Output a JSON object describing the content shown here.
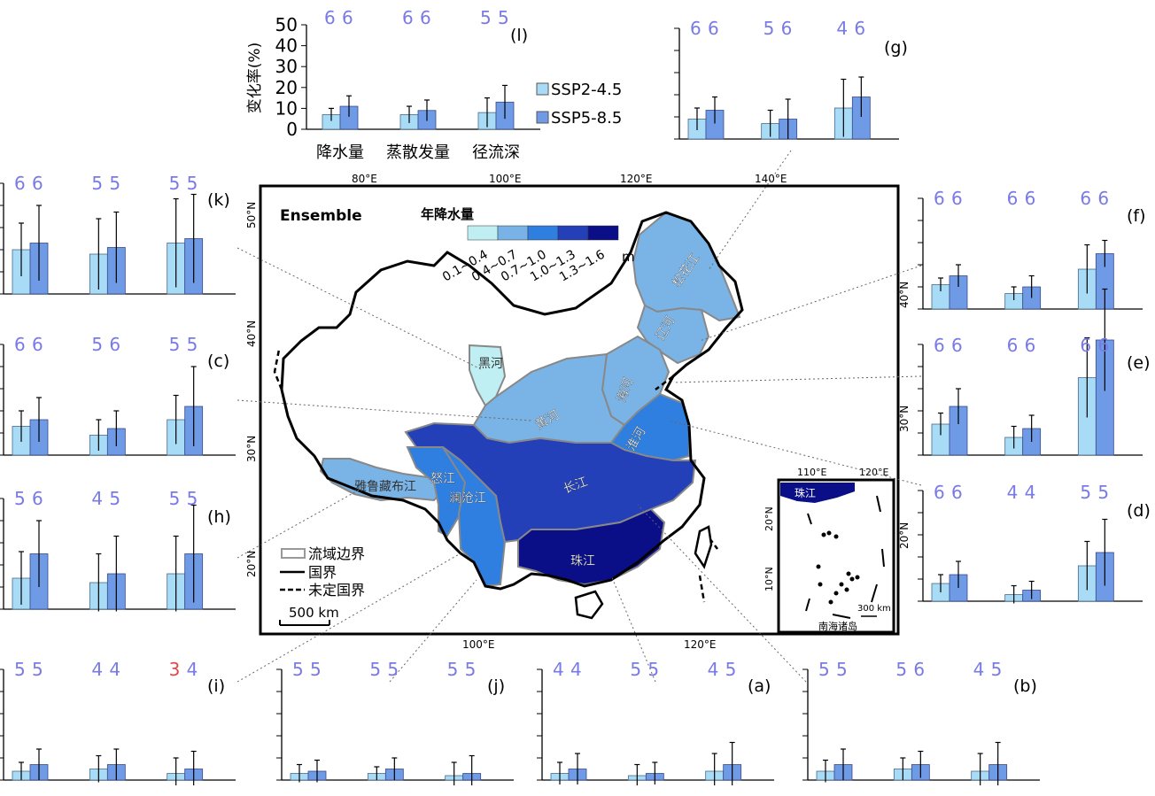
{
  "legend": {
    "ssp245": "SSP2-4.5",
    "ssp585": "SSP5-8.5",
    "ssp245_color": "#a8dcf6",
    "ssp585_color": "#6e9ae6"
  },
  "map": {
    "title": "Ensemble",
    "colorbar_title": "年降水量",
    "colorbar_unit": "m",
    "colorbar_bins": [
      "0.1~0.4",
      "0.4~0.7",
      "0.7~1.0",
      "1.0~1.3",
      "1.3~1.6"
    ],
    "colorbar_colors": [
      "#bfeff3",
      "#78b2e6",
      "#2f7fe0",
      "#2340b8",
      "#0a0f88"
    ],
    "lon_ticks_top": [
      "80°E",
      "100°E",
      "120°E",
      "140°E"
    ],
    "lon_ticks_bottom": [
      "100°E",
      "120°E"
    ],
    "lat_ticks": [
      "50°N",
      "40°N",
      "30°N",
      "20°N"
    ],
    "basins": [
      "松花江",
      "辽河",
      "海河",
      "黑河",
      "黄河",
      "淮河",
      "长江",
      "雅鲁藏布江",
      "怒江",
      "澜沧江",
      "珠江"
    ],
    "map_legend": [
      "流域边界",
      "国界",
      "未定国界"
    ],
    "scale_bar": "500 km",
    "inset": {
      "lon_ticks": [
        "110°E",
        "120°E"
      ],
      "lat_ticks": [
        "20°N",
        "10°N"
      ],
      "label": "珠江",
      "scale": "300 km",
      "caption": "南海诸岛"
    }
  },
  "chart_data": {
    "type": "bar",
    "ylabel": "变化率(%)",
    "categories": [
      "降水量",
      "蒸散发量",
      "径流深"
    ],
    "yticks": [
      "0",
      "10",
      "20",
      "30",
      "40",
      "50"
    ],
    "ylim": [
      0,
      50
    ],
    "panels": [
      {
        "label": "(l)",
        "counts": [
          [
            "6",
            "6"
          ],
          [
            "6",
            "6"
          ],
          [
            "5",
            "5"
          ]
        ],
        "ssp245": [
          7,
          7,
          8
        ],
        "ssp585": [
          11,
          9,
          13
        ],
        "err245": [
          3,
          4,
          7
        ],
        "err585": [
          5,
          5,
          8
        ]
      },
      {
        "label": "(g)",
        "counts": [
          [
            "6",
            "6"
          ],
          [
            "5",
            "6"
          ],
          [
            "4",
            "6"
          ]
        ],
        "ssp245": [
          9,
          7,
          14
        ],
        "ssp585": [
          13,
          9,
          19
        ],
        "err245": [
          5,
          6,
          13
        ],
        "err585": [
          6,
          9,
          9
        ]
      },
      {
        "label": "(k)",
        "counts": [
          [
            "6",
            "6"
          ],
          [
            "5",
            "5"
          ],
          [
            "5",
            "5"
          ]
        ],
        "ssp245": [
          20,
          18,
          23
        ],
        "ssp585": [
          23,
          21,
          25
        ],
        "err245": [
          12,
          16,
          20
        ],
        "err585": [
          17,
          16,
          20
        ]
      },
      {
        "label": "(f)",
        "counts": [
          [
            "6",
            "6"
          ],
          [
            "6",
            "6"
          ],
          [
            "6",
            "6"
          ]
        ],
        "ssp245": [
          11,
          7,
          18
        ],
        "ssp585": [
          15,
          10,
          25
        ],
        "err245": [
          3,
          3,
          11
        ],
        "err585": [
          5,
          5,
          6
        ]
      },
      {
        "label": "(c)",
        "counts": [
          [
            "6",
            "6"
          ],
          [
            "5",
            "6"
          ],
          [
            "5",
            "5"
          ]
        ],
        "ssp245": [
          13,
          9,
          16
        ],
        "ssp585": [
          16,
          12,
          22
        ],
        "err245": [
          7,
          7,
          11
        ],
        "err585": [
          10,
          8,
          18
        ]
      },
      {
        "label": "(e)",
        "counts": [
          [
            "6",
            "6"
          ],
          [
            "6",
            "6"
          ],
          [
            "6",
            "6"
          ]
        ],
        "ssp245": [
          14,
          8,
          35
        ],
        "ssp585": [
          22,
          12,
          52
        ],
        "err245": [
          5,
          5,
          18
        ],
        "err585": [
          8,
          6,
          23
        ]
      },
      {
        "label": "(h)",
        "counts": [
          [
            "5",
            "6"
          ],
          [
            "4",
            "5"
          ],
          [
            "5",
            "5"
          ]
        ],
        "ssp245": [
          14,
          12,
          16
        ],
        "ssp585": [
          25,
          16,
          25
        ],
        "err245": [
          12,
          13,
          17
        ],
        "err585": [
          15,
          17,
          22
        ]
      },
      {
        "label": "(d)",
        "counts": [
          [
            "6",
            "6"
          ],
          [
            "4",
            "4"
          ],
          [
            "5",
            "5"
          ]
        ],
        "ssp245": [
          8,
          3,
          16
        ],
        "ssp585": [
          12,
          5,
          22
        ],
        "err245": [
          4,
          4,
          11
        ],
        "err585": [
          6,
          4,
          15
        ]
      },
      {
        "label": "(i)",
        "counts": [
          [
            "5",
            "5"
          ],
          [
            "4",
            "4"
          ],
          [
            "3",
            "4"
          ]
        ],
        "highlight": {
          "panel": "(i)",
          "category": "径流深",
          "scenario": "SSP2-4.5",
          "color": "#e04848"
        },
        "ssp245": [
          4,
          5,
          3
        ],
        "ssp585": [
          7,
          7,
          5
        ],
        "err245": [
          4,
          6,
          7
        ],
        "err585": [
          7,
          7,
          8
        ]
      },
      {
        "label": "(j)",
        "counts": [
          [
            "5",
            "5"
          ],
          [
            "5",
            "5"
          ],
          [
            "5",
            "5"
          ]
        ],
        "ssp245": [
          3,
          3,
          2
        ],
        "ssp585": [
          4,
          5,
          3
        ],
        "err245": [
          4,
          3,
          6
        ],
        "err585": [
          5,
          5,
          8
        ]
      },
      {
        "label": "(a)",
        "counts": [
          [
            "4",
            "4"
          ],
          [
            "5",
            "5"
          ],
          [
            "4",
            "5"
          ]
        ],
        "ssp245": [
          3,
          2,
          4
        ],
        "ssp585": [
          5,
          3,
          7
        ],
        "err245": [
          5,
          5,
          8
        ],
        "err585": [
          7,
          5,
          10
        ]
      },
      {
        "label": "(b)",
        "counts": [
          [
            "5",
            "5"
          ],
          [
            "5",
            "6"
          ],
          [
            "4",
            "5"
          ]
        ],
        "ssp245": [
          4,
          5,
          4
        ],
        "ssp585": [
          7,
          7,
          7
        ],
        "err245": [
          5,
          5,
          8
        ],
        "err585": [
          7,
          6,
          10
        ]
      }
    ]
  }
}
